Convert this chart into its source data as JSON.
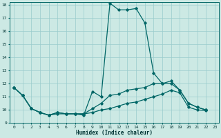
{
  "xlabel": "Humidex (Indice chaleur)",
  "xlim": [
    -0.5,
    23.5
  ],
  "ylim": [
    9,
    18.2
  ],
  "yticks": [
    9,
    10,
    11,
    12,
    13,
    14,
    15,
    16,
    17,
    18
  ],
  "xticks": [
    0,
    1,
    2,
    3,
    4,
    5,
    6,
    7,
    8,
    9,
    10,
    11,
    12,
    13,
    14,
    15,
    16,
    17,
    18,
    19,
    20,
    21,
    22,
    23
  ],
  "background_color": "#cce9e4",
  "grid_color": "#99cccc",
  "line_color": "#006666",
  "line1_x": [
    0,
    1,
    2,
    3,
    4,
    5,
    6,
    7,
    8,
    9,
    10,
    11,
    12,
    13,
    14,
    15,
    16,
    17,
    18,
    19,
    20,
    21,
    22
  ],
  "line1_y": [
    11.7,
    11.1,
    10.1,
    9.8,
    9.6,
    9.8,
    9.7,
    9.7,
    9.6,
    11.4,
    11.0,
    18.1,
    17.6,
    17.6,
    17.7,
    16.6,
    12.8,
    12.0,
    12.2,
    11.5,
    10.5,
    10.2,
    10.0
  ],
  "line2_x": [
    0,
    1,
    2,
    3,
    4,
    5,
    6,
    7,
    8,
    9,
    10,
    11,
    12,
    13,
    14,
    15,
    16,
    17,
    18,
    19,
    20,
    21,
    22
  ],
  "line2_y": [
    11.7,
    11.1,
    10.1,
    9.8,
    9.6,
    9.8,
    9.7,
    9.7,
    9.7,
    10.1,
    10.5,
    11.1,
    11.2,
    11.5,
    11.6,
    11.7,
    12.0,
    12.0,
    12.0,
    11.5,
    10.5,
    10.2,
    10.0
  ],
  "line3_x": [
    0,
    1,
    2,
    3,
    4,
    5,
    6,
    7,
    8,
    9,
    10,
    11,
    12,
    13,
    14,
    15,
    16,
    17,
    18,
    19,
    20,
    21,
    22
  ],
  "line3_y": [
    11.7,
    11.1,
    10.1,
    9.8,
    9.6,
    9.7,
    9.7,
    9.7,
    9.7,
    9.8,
    10.0,
    10.1,
    10.3,
    10.5,
    10.6,
    10.8,
    11.0,
    11.2,
    11.5,
    11.3,
    10.2,
    10.0,
    9.95
  ]
}
